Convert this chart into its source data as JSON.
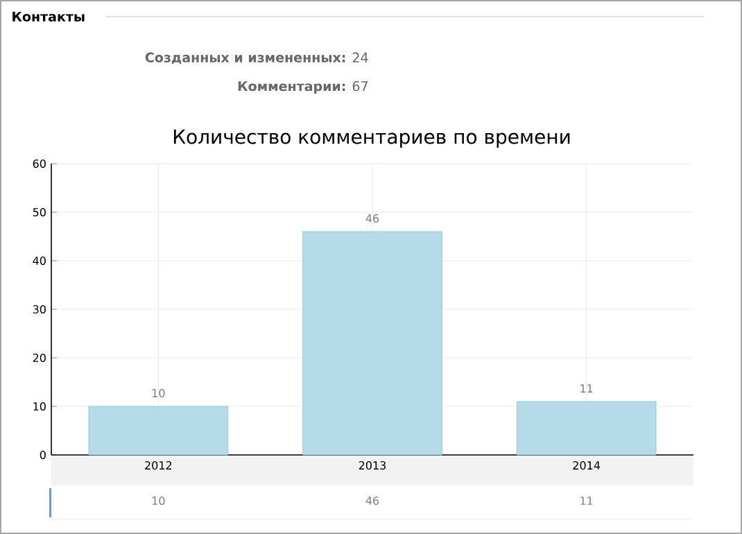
{
  "chart_data": {
    "type": "bar",
    "title": "Количество комментариев по времени",
    "annotations": [
      "Контакты",
      "**Созданных и измененных:** 24",
      "**Комментарии:** 67",
      "10",
      "46",
      "11"
    ],
    "categories": [
      "2012",
      "2013",
      "2014"
    ],
    "values": [
      10,
      46,
      11
    ],
    "color": "#b4dbe7",
    "ylim": [
      0,
      60
    ],
    "yticks": [
      0,
      10,
      20,
      30,
      40,
      50,
      60
    ],
    "grid": true,
    "data_labels": true
  }
}
